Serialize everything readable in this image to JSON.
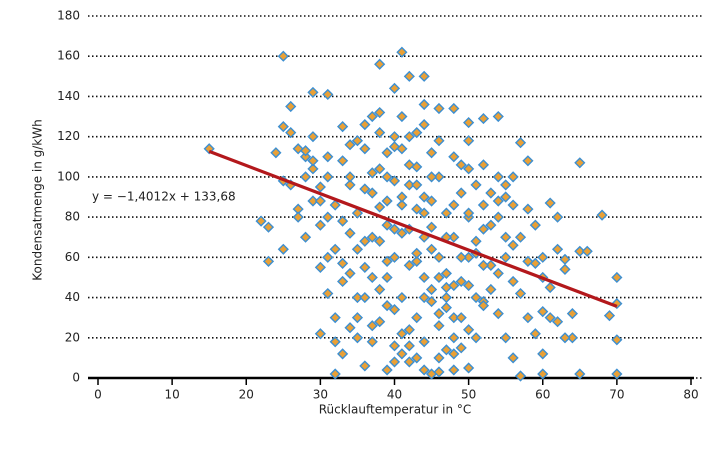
{
  "chart_data": {
    "type": "scatter",
    "x_label": "Rücklauftemperatur in °C",
    "y_label": "Kondensatmenge in g/kWh",
    "xlim": [
      0,
      80
    ],
    "xticks": [
      0,
      10,
      20,
      30,
      40,
      50,
      60,
      70,
      80
    ],
    "ylim": [
      0,
      180
    ],
    "yticks": [
      0,
      20,
      40,
      60,
      80,
      100,
      120,
      140,
      160,
      180
    ],
    "grid": true,
    "point_fill": "#e9a036",
    "point_stroke": "#3d8fd1",
    "trendline": {
      "label": "y = −1,4012x + 133,68",
      "slope": -1.4012,
      "intercept": 133.68,
      "x_range": [
        15,
        70
      ],
      "color": "#b3181c"
    },
    "x": [
      15,
      25,
      41,
      38,
      42,
      44,
      29,
      31,
      26,
      46,
      48,
      52,
      54,
      50,
      57,
      58,
      65,
      22,
      23,
      23,
      25,
      68,
      70,
      69,
      70,
      70,
      70,
      65,
      66,
      62,
      61,
      63,
      64,
      65,
      60,
      57,
      60,
      61,
      59,
      60,
      32,
      33,
      34,
      35,
      36,
      37,
      38,
      39,
      40,
      41,
      42,
      43,
      44,
      45,
      46,
      47,
      48,
      49,
      50,
      51,
      30,
      31,
      33,
      35,
      37,
      39,
      41,
      43,
      45,
      47,
      49,
      51,
      53,
      55,
      56,
      54,
      52,
      50,
      48,
      46,
      28,
      27,
      29,
      30,
      32,
      34,
      36,
      38,
      40,
      42,
      44,
      46,
      48,
      50,
      52,
      54,
      56,
      58,
      55,
      53,
      24,
      26,
      27,
      28,
      29,
      30,
      31,
      32,
      33,
      34,
      35,
      36,
      37,
      38,
      39,
      40,
      41,
      42,
      43,
      44,
      45,
      46,
      47,
      48,
      49,
      50,
      51,
      52,
      53,
      54,
      55,
      56,
      57,
      58,
      59,
      60,
      61,
      62,
      63,
      64,
      36,
      37,
      38,
      39,
      40,
      41,
      42,
      43,
      44,
      45,
      38,
      40,
      42,
      44,
      46,
      48,
      50,
      52,
      54,
      56,
      33,
      35,
      37,
      39,
      41,
      43,
      45,
      47,
      49,
      51,
      30,
      32,
      34,
      36,
      38,
      40,
      42,
      44,
      46,
      48,
      31,
      33,
      35,
      37,
      39,
      41,
      43,
      45,
      47,
      49,
      26,
      28,
      29,
      31,
      34,
      36,
      40,
      44,
      50,
      55,
      25,
      25,
      27,
      28,
      29,
      30,
      31,
      32,
      33,
      34,
      35,
      36,
      37,
      38,
      39,
      40,
      41,
      42,
      43,
      44,
      45,
      46,
      47,
      48,
      49,
      50,
      51,
      52,
      53,
      54,
      56,
      57,
      58,
      59,
      60,
      62,
      63,
      55,
      52,
      50,
      39,
      40,
      41,
      42,
      43,
      44,
      45,
      46,
      47,
      48
    ],
    "values": [
      114,
      160,
      162,
      156,
      150,
      150,
      142,
      141,
      135,
      134,
      134,
      129,
      130,
      127,
      117,
      108,
      107,
      78,
      75,
      58,
      64,
      81,
      50,
      31,
      37,
      19,
      2,
      63,
      63,
      80,
      87,
      59,
      20,
      2,
      2,
      1,
      33,
      45,
      57,
      60,
      2,
      12,
      25,
      40,
      55,
      70,
      85,
      100,
      115,
      130,
      120,
      105,
      90,
      75,
      60,
      45,
      30,
      15,
      5,
      20,
      95,
      110,
      125,
      118,
      102,
      88,
      72,
      58,
      44,
      35,
      48,
      62,
      76,
      90,
      66,
      52,
      38,
      24,
      12,
      3,
      100,
      114,
      88,
      76,
      64,
      52,
      40,
      28,
      16,
      8,
      18,
      32,
      46,
      60,
      74,
      88,
      100,
      84,
      70,
      56,
      112,
      96,
      84,
      70,
      120,
      55,
      42,
      30,
      108,
      96,
      82,
      68,
      130,
      122,
      112,
      98,
      86,
      74,
      62,
      50,
      38,
      26,
      14,
      4,
      92,
      80,
      68,
      56,
      44,
      32,
      20,
      10,
      42,
      30,
      22,
      12,
      30,
      28,
      20,
      32,
      6,
      18,
      44,
      58,
      74,
      90,
      106,
      122,
      136,
      112,
      132,
      120,
      96,
      82,
      100,
      70,
      46,
      36,
      80,
      48,
      78,
      64,
      50,
      36,
      22,
      10,
      64,
      82,
      106,
      96,
      22,
      86,
      100,
      114,
      104,
      60,
      56,
      40,
      118,
      110,
      60,
      48,
      20,
      92,
      76,
      40,
      84,
      100,
      70,
      60,
      122,
      110,
      104,
      100,
      116,
      126,
      144,
      126,
      82,
      60,
      125,
      98,
      80,
      113,
      108,
      88,
      80,
      18,
      57,
      72,
      30,
      94,
      26,
      68,
      50,
      34,
      114,
      16,
      96,
      70,
      88,
      50,
      40,
      86,
      30,
      104,
      40,
      86,
      92,
      100,
      86,
      70,
      58,
      76,
      50,
      64,
      54,
      96,
      106,
      118,
      4,
      8,
      12,
      24,
      30,
      4,
      2,
      10,
      52,
      20
    ]
  }
}
